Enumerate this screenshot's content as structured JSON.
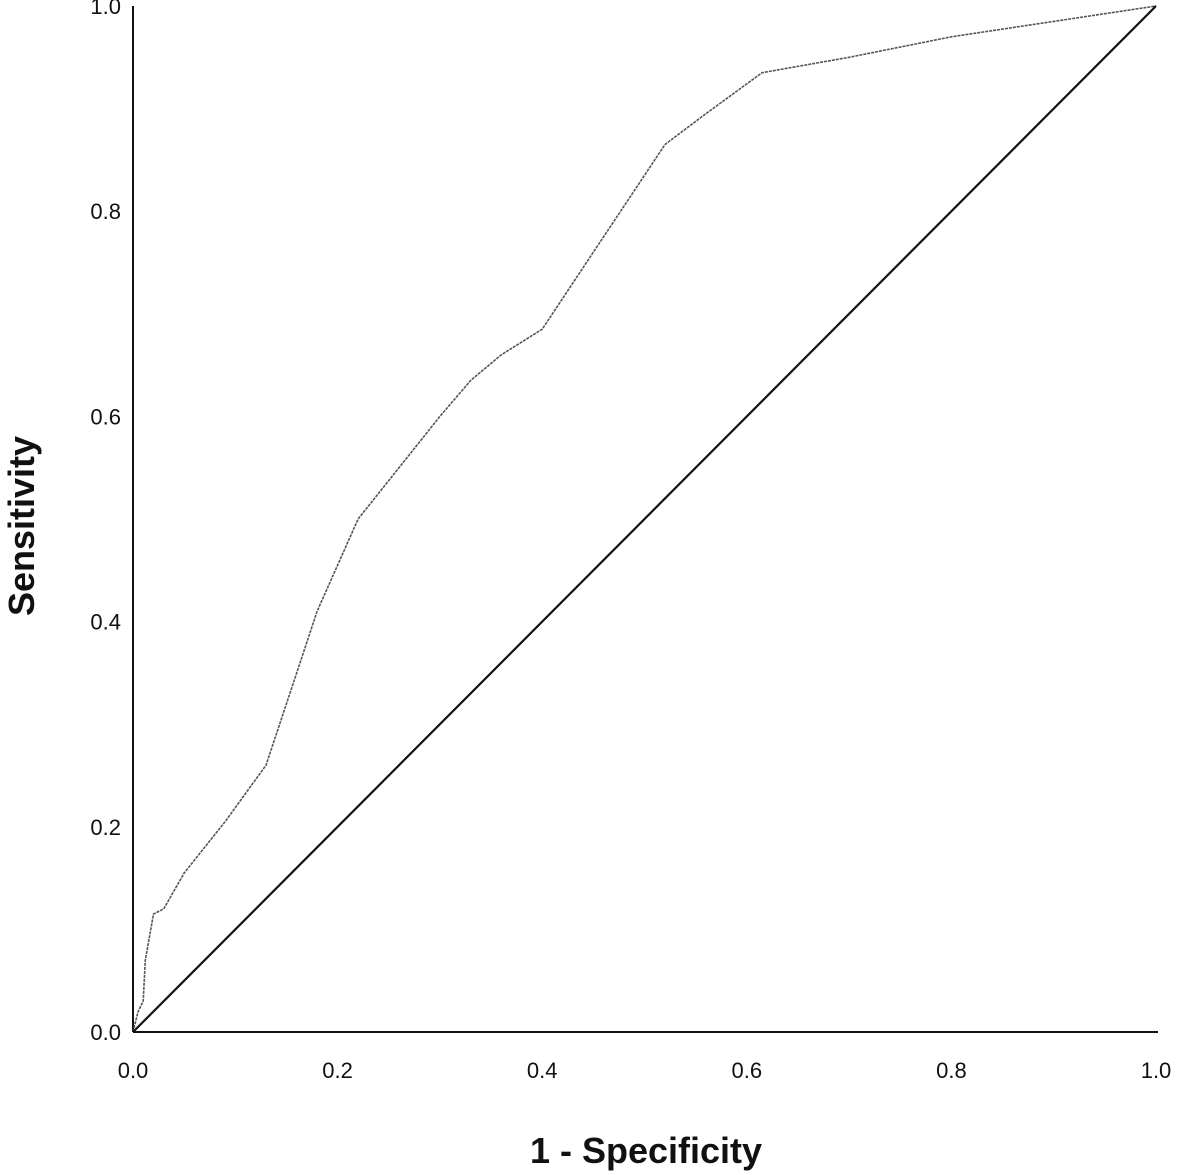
{
  "chart_data": {
    "type": "line",
    "xlabel": "1 - Specificity",
    "ylabel": "Sensitivity",
    "xlim": [
      0.0,
      1.0
    ],
    "ylim": [
      0.0,
      1.0
    ],
    "x_ticks": [
      "0.0",
      "0.2",
      "0.4",
      "0.6",
      "0.8",
      "1.0"
    ],
    "y_ticks": [
      "0.0",
      "0.2",
      "0.4",
      "0.6",
      "0.8",
      "1.0"
    ],
    "grid": false,
    "series": [
      {
        "style": "curve",
        "x": [
          0.0,
          0.005,
          0.01,
          0.012,
          0.02,
          0.03,
          0.05,
          0.09,
          0.13,
          0.16,
          0.18,
          0.22,
          0.26,
          0.3,
          0.33,
          0.36,
          0.4,
          0.44,
          0.48,
          0.52,
          0.56,
          0.615,
          0.7,
          0.8,
          0.9,
          1.0
        ],
        "y": [
          0.0,
          0.02,
          0.03,
          0.07,
          0.115,
          0.12,
          0.155,
          0.205,
          0.26,
          0.35,
          0.41,
          0.5,
          0.55,
          0.6,
          0.635,
          0.66,
          0.685,
          0.745,
          0.805,
          0.865,
          0.895,
          0.935,
          0.95,
          0.97,
          0.985,
          1.0
        ]
      },
      {
        "style": "reference",
        "x": [
          0.0,
          1.0
        ],
        "y": [
          0.0,
          1.0
        ]
      }
    ]
  }
}
